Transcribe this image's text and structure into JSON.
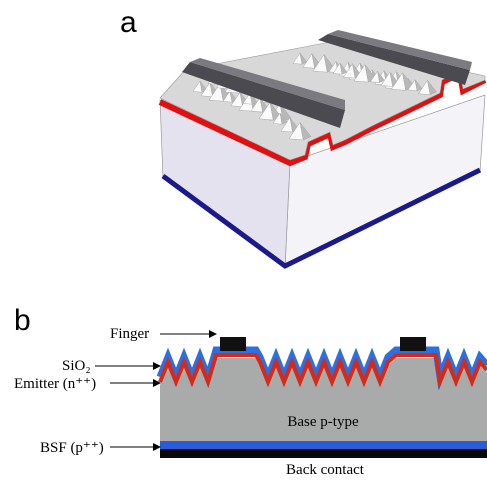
{
  "panel_a": {
    "label": "a"
  },
  "panel_b": {
    "label": "b",
    "labels": [
      "Finger",
      "SiO₂",
      "Emitter (n⁺⁺)",
      "BSF (p⁺⁺)"
    ],
    "base_label": "Base p-type",
    "back_contact_label": "Back contact"
  }
}
